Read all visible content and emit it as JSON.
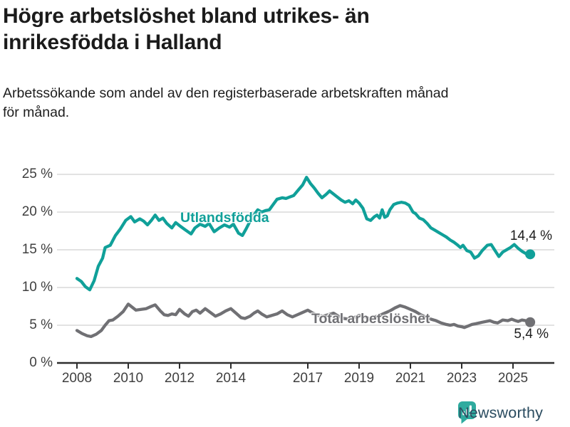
{
  "chart_data": {
    "type": "line",
    "title": "Högre arbetslöshet bland utrikes- än\ninrikesfödda i Halland",
    "subtitle": "Arbetssökande som andel av den registerbaserade arbetskraften månad\nför månad.",
    "grid": "horizontal",
    "legend_position": "inline-labels",
    "x_axis": {
      "range_years": [
        2007.9,
        2026.6
      ],
      "ticks": [
        {
          "value": 2008,
          "label": "2008"
        },
        {
          "value": 2010,
          "label": "2010"
        },
        {
          "value": 2012,
          "label": "2012"
        },
        {
          "value": 2014,
          "label": "2014"
        },
        {
          "value": 2017,
          "label": "2017"
        },
        {
          "value": 2019,
          "label": "2019"
        },
        {
          "value": 2021,
          "label": "2021"
        },
        {
          "value": 2023,
          "label": "2023"
        },
        {
          "value": 2025,
          "label": "2025"
        }
      ]
    },
    "y_axis": {
      "unit": "%",
      "range": [
        0,
        25
      ],
      "ticks": [
        {
          "value": 0,
          "label": "0 %"
        },
        {
          "value": 5,
          "label": "5 %"
        },
        {
          "value": 10,
          "label": "10 %"
        },
        {
          "value": 15,
          "label": "15 %"
        },
        {
          "value": 20,
          "label": "20 %"
        },
        {
          "value": 25,
          "label": "25 %"
        }
      ]
    },
    "series": [
      {
        "name": "Utlandsfödda",
        "color": "#10a099",
        "end_value": 14.4,
        "end_label": "14,4 %",
        "points": [
          [
            2008.0,
            11.2
          ],
          [
            2008.17,
            10.8
          ],
          [
            2008.33,
            10.1
          ],
          [
            2008.5,
            9.7
          ],
          [
            2008.67,
            10.9
          ],
          [
            2008.83,
            12.8
          ],
          [
            2009.0,
            13.9
          ],
          [
            2009.1,
            15.3
          ],
          [
            2009.3,
            15.6
          ],
          [
            2009.5,
            16.9
          ],
          [
            2009.7,
            17.8
          ],
          [
            2009.9,
            18.9
          ],
          [
            2010.1,
            19.4
          ],
          [
            2010.25,
            18.7
          ],
          [
            2010.45,
            19.1
          ],
          [
            2010.6,
            18.8
          ],
          [
            2010.75,
            18.3
          ],
          [
            2010.9,
            18.9
          ],
          [
            2011.05,
            19.6
          ],
          [
            2011.2,
            18.9
          ],
          [
            2011.35,
            19.2
          ],
          [
            2011.5,
            18.5
          ],
          [
            2011.7,
            17.9
          ],
          [
            2011.85,
            18.6
          ],
          [
            2012.0,
            18.2
          ],
          [
            2012.2,
            17.7
          ],
          [
            2012.45,
            17.1
          ],
          [
            2012.6,
            17.9
          ],
          [
            2012.8,
            18.4
          ],
          [
            2013.0,
            18.1
          ],
          [
            2013.15,
            18.5
          ],
          [
            2013.35,
            17.4
          ],
          [
            2013.55,
            17.9
          ],
          [
            2013.75,
            18.3
          ],
          [
            2013.95,
            18.0
          ],
          [
            2014.1,
            18.4
          ],
          [
            2014.3,
            17.2
          ],
          [
            2014.45,
            16.9
          ],
          [
            2014.6,
            17.8
          ],
          [
            2014.75,
            18.8
          ],
          [
            2014.9,
            19.6
          ],
          [
            2015.05,
            20.3
          ],
          [
            2015.2,
            20.0
          ],
          [
            2015.35,
            20.2
          ],
          [
            2015.5,
            20.3
          ],
          [
            2015.65,
            21.0
          ],
          [
            2015.8,
            21.7
          ],
          [
            2016.0,
            21.9
          ],
          [
            2016.15,
            21.8
          ],
          [
            2016.3,
            22.0
          ],
          [
            2016.45,
            22.2
          ],
          [
            2016.6,
            22.8
          ],
          [
            2016.8,
            23.6
          ],
          [
            2016.95,
            24.6
          ],
          [
            2017.1,
            23.8
          ],
          [
            2017.25,
            23.2
          ],
          [
            2017.4,
            22.5
          ],
          [
            2017.55,
            21.9
          ],
          [
            2017.7,
            22.3
          ],
          [
            2017.85,
            22.8
          ],
          [
            2018.0,
            22.4
          ],
          [
            2018.15,
            22.0
          ],
          [
            2018.3,
            21.6
          ],
          [
            2018.45,
            21.3
          ],
          [
            2018.6,
            21.5
          ],
          [
            2018.75,
            21.1
          ],
          [
            2018.87,
            21.6
          ],
          [
            2019.0,
            21.2
          ],
          [
            2019.15,
            20.5
          ],
          [
            2019.3,
            19.1
          ],
          [
            2019.45,
            18.9
          ],
          [
            2019.6,
            19.4
          ],
          [
            2019.7,
            19.6
          ],
          [
            2019.8,
            19.2
          ],
          [
            2019.9,
            20.3
          ],
          [
            2020.0,
            19.3
          ],
          [
            2020.1,
            19.5
          ],
          [
            2020.2,
            20.3
          ],
          [
            2020.35,
            21.0
          ],
          [
            2020.5,
            21.2
          ],
          [
            2020.65,
            21.3
          ],
          [
            2020.8,
            21.2
          ],
          [
            2020.95,
            20.9
          ],
          [
            2021.1,
            20.0
          ],
          [
            2021.2,
            19.8
          ],
          [
            2021.35,
            19.2
          ],
          [
            2021.5,
            19.0
          ],
          [
            2021.65,
            18.5
          ],
          [
            2021.8,
            17.9
          ],
          [
            2021.95,
            17.6
          ],
          [
            2022.1,
            17.3
          ],
          [
            2022.25,
            17.0
          ],
          [
            2022.4,
            16.7
          ],
          [
            2022.55,
            16.3
          ],
          [
            2022.7,
            16.0
          ],
          [
            2022.85,
            15.6
          ],
          [
            2022.95,
            15.3
          ],
          [
            2023.05,
            15.6
          ],
          [
            2023.2,
            14.9
          ],
          [
            2023.35,
            14.7
          ],
          [
            2023.5,
            13.9
          ],
          [
            2023.65,
            14.2
          ],
          [
            2023.8,
            14.9
          ],
          [
            2024.0,
            15.6
          ],
          [
            2024.15,
            15.7
          ],
          [
            2024.3,
            14.9
          ],
          [
            2024.45,
            14.1
          ],
          [
            2024.6,
            14.7
          ],
          [
            2024.75,
            15.0
          ],
          [
            2024.9,
            15.3
          ],
          [
            2025.05,
            15.7
          ],
          [
            2025.2,
            15.2
          ],
          [
            2025.35,
            14.8
          ],
          [
            2025.5,
            14.5
          ],
          [
            2025.67,
            14.4
          ]
        ]
      },
      {
        "name": "Total arbetslöshet",
        "color": "#707074",
        "end_value": 5.4,
        "end_label": "5,4 %",
        "points": [
          [
            2008.0,
            4.3
          ],
          [
            2008.2,
            3.9
          ],
          [
            2008.4,
            3.6
          ],
          [
            2008.55,
            3.5
          ],
          [
            2008.75,
            3.8
          ],
          [
            2008.95,
            4.3
          ],
          [
            2009.1,
            5.0
          ],
          [
            2009.25,
            5.6
          ],
          [
            2009.4,
            5.7
          ],
          [
            2009.6,
            6.2
          ],
          [
            2009.8,
            6.8
          ],
          [
            2010.0,
            7.8
          ],
          [
            2010.15,
            7.4
          ],
          [
            2010.3,
            7.0
          ],
          [
            2010.5,
            7.1
          ],
          [
            2010.7,
            7.2
          ],
          [
            2010.9,
            7.5
          ],
          [
            2011.05,
            7.7
          ],
          [
            2011.25,
            6.9
          ],
          [
            2011.4,
            6.4
          ],
          [
            2011.55,
            6.3
          ],
          [
            2011.7,
            6.5
          ],
          [
            2011.85,
            6.4
          ],
          [
            2012.0,
            7.1
          ],
          [
            2012.2,
            6.5
          ],
          [
            2012.35,
            6.2
          ],
          [
            2012.5,
            6.8
          ],
          [
            2012.65,
            7.0
          ],
          [
            2012.8,
            6.6
          ],
          [
            2013.0,
            7.2
          ],
          [
            2013.2,
            6.7
          ],
          [
            2013.4,
            6.2
          ],
          [
            2013.6,
            6.5
          ],
          [
            2013.8,
            6.9
          ],
          [
            2014.0,
            7.2
          ],
          [
            2014.2,
            6.6
          ],
          [
            2014.4,
            6.0
          ],
          [
            2014.55,
            5.9
          ],
          [
            2014.75,
            6.2
          ],
          [
            2014.9,
            6.6
          ],
          [
            2015.05,
            6.9
          ],
          [
            2015.2,
            6.5
          ],
          [
            2015.4,
            6.1
          ],
          [
            2015.6,
            6.3
          ],
          [
            2015.8,
            6.5
          ],
          [
            2016.0,
            6.9
          ],
          [
            2016.2,
            6.4
          ],
          [
            2016.4,
            6.1
          ],
          [
            2016.6,
            6.4
          ],
          [
            2016.8,
            6.7
          ],
          [
            2017.0,
            7.0
          ],
          [
            2017.2,
            6.6
          ],
          [
            2017.4,
            6.3
          ],
          [
            2017.6,
            6.2
          ],
          [
            2017.8,
            6.4
          ],
          [
            2018.0,
            6.6
          ],
          [
            2018.2,
            6.2
          ],
          [
            2018.4,
            5.9
          ],
          [
            2018.6,
            5.8
          ],
          [
            2018.8,
            6.0
          ],
          [
            2019.0,
            6.3
          ],
          [
            2019.2,
            6.1
          ],
          [
            2019.4,
            5.9
          ],
          [
            2019.6,
            6.1
          ],
          [
            2019.8,
            6.3
          ],
          [
            2020.0,
            6.6
          ],
          [
            2020.2,
            6.9
          ],
          [
            2020.4,
            7.3
          ],
          [
            2020.6,
            7.6
          ],
          [
            2020.8,
            7.4
          ],
          [
            2021.0,
            7.1
          ],
          [
            2021.2,
            6.8
          ],
          [
            2021.4,
            6.4
          ],
          [
            2021.6,
            6.1
          ],
          [
            2021.8,
            5.8
          ],
          [
            2022.0,
            5.6
          ],
          [
            2022.2,
            5.3
          ],
          [
            2022.4,
            5.1
          ],
          [
            2022.55,
            5.0
          ],
          [
            2022.7,
            5.1
          ],
          [
            2022.85,
            4.9
          ],
          [
            2023.0,
            4.8
          ],
          [
            2023.1,
            4.7
          ],
          [
            2023.25,
            4.9
          ],
          [
            2023.4,
            5.1
          ],
          [
            2023.55,
            5.2
          ],
          [
            2023.8,
            5.4
          ],
          [
            2024.1,
            5.6
          ],
          [
            2024.25,
            5.4
          ],
          [
            2024.4,
            5.3
          ],
          [
            2024.6,
            5.7
          ],
          [
            2024.8,
            5.6
          ],
          [
            2024.95,
            5.8
          ],
          [
            2025.1,
            5.6
          ],
          [
            2025.2,
            5.5
          ],
          [
            2025.35,
            5.7
          ],
          [
            2025.5,
            5.6
          ],
          [
            2025.67,
            5.4
          ]
        ]
      }
    ],
    "style": {
      "grid_color": "#d8d8d8",
      "axis_color": "#2e2e2e",
      "axis_text_color": "#3f3f3f"
    }
  },
  "branding": {
    "logo_text": "Newsworthy",
    "logo_icon": "bar-chart-speech-bubble-icon",
    "icon_color": "#2fab9f",
    "text_color": "#2b4c60"
  }
}
